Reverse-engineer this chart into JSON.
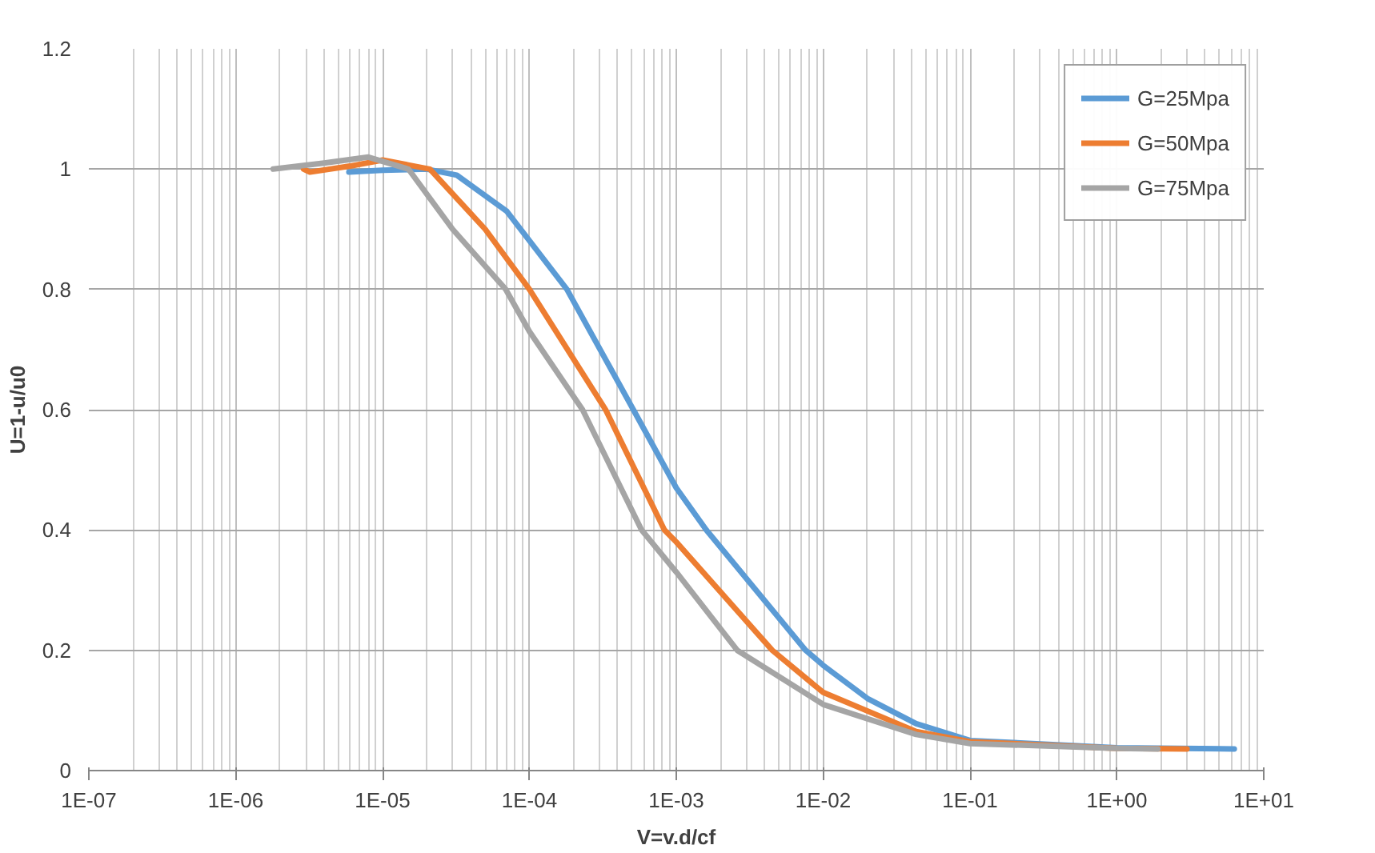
{
  "chart_data": {
    "type": "line",
    "xlabel": "V=v.d/cf",
    "ylabel": "U=1-u/u0",
    "log": "x",
    "grid": true,
    "legend": "top right",
    "line_style": "solid",
    "marker": "none",
    "xlim": [
      1e-07,
      10
    ],
    "xticks": [
      {
        "value": 1e-07,
        "label": "1E-07"
      },
      {
        "value": 1e-06,
        "label": "1E-06"
      },
      {
        "value": 1e-05,
        "label": "1E-05"
      },
      {
        "value": 0.0001,
        "label": "1E-04"
      },
      {
        "value": 0.001,
        "label": "1E-03"
      },
      {
        "value": 0.01,
        "label": "1E-02"
      },
      {
        "value": 0.1,
        "label": "1E-01"
      },
      {
        "value": 1,
        "label": "1E+00"
      },
      {
        "value": 10,
        "label": "1E+01"
      }
    ],
    "ylim": [
      0,
      1.2
    ],
    "yticks": [
      0,
      0.2,
      0.4,
      0.6,
      0.8,
      1,
      1.2
    ],
    "series": [
      {
        "name": "G=25Mpa",
        "color": "#5b9bd5",
        "x": [
          5.9e-06,
          1e-05,
          2e-05,
          3.2e-05,
          7e-05,
          0.00018,
          0.00051,
          0.001,
          0.0016,
          0.0076,
          0.01,
          0.02,
          0.043,
          0.1,
          1,
          6.3
        ],
        "values": [
          0.995,
          0.998,
          1.0,
          0.99,
          0.93,
          0.8,
          0.6,
          0.47,
          0.4,
          0.2,
          0.175,
          0.12,
          0.078,
          0.05,
          0.038,
          0.036
        ]
      },
      {
        "name": "G=50Mpa",
        "color": "#ed7d31",
        "x": [
          2.9e-06,
          3.2e-06,
          6e-06,
          1e-05,
          2.1e-05,
          5e-05,
          0.0001,
          0.00033,
          0.00083,
          0.001,
          0.0045,
          0.01,
          0.043,
          0.1,
          1,
          3
        ],
        "values": [
          1.0,
          0.995,
          1.005,
          1.015,
          1.0,
          0.9,
          0.8,
          0.6,
          0.4,
          0.38,
          0.2,
          0.13,
          0.065,
          0.048,
          0.037,
          0.036
        ]
      },
      {
        "name": "G=75Mpa",
        "color": "#a5a5a5",
        "x": [
          1.8e-06,
          4e-06,
          8e-06,
          1.5e-05,
          3e-05,
          6.9e-05,
          0.0001,
          0.00023,
          0.00058,
          0.001,
          0.0026,
          0.01,
          0.043,
          0.1,
          1,
          1.9
        ],
        "values": [
          1.0,
          1.01,
          1.02,
          1.0,
          0.9,
          0.8,
          0.73,
          0.6,
          0.4,
          0.33,
          0.2,
          0.11,
          0.06,
          0.045,
          0.037,
          0.036
        ]
      }
    ]
  }
}
